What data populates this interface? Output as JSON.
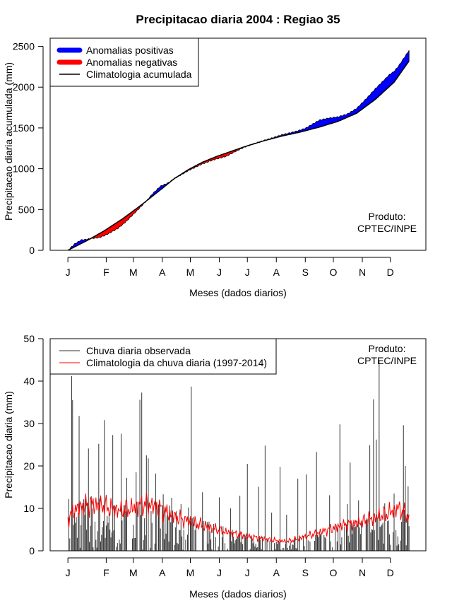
{
  "title": "Precipitacao diaria 2004 : Regiao 35",
  "credit": {
    "line1": "Produto:",
    "line2": "CPTEC/INPE"
  },
  "colors": {
    "positive": "#0000ff",
    "negative": "#ff0000",
    "observed": "#333333",
    "climatology": "#ff0000",
    "axis": "#000000"
  },
  "chart_data": [
    {
      "type": "area",
      "name": "accumulated",
      "ylabel": "Precipitacao diaria acumulada (mm)",
      "xlabel": "Meses (dados diarios)",
      "ylim": [
        0,
        2600
      ],
      "xlim": [
        -18,
        384
      ],
      "month_ticks": [
        1,
        42,
        71,
        102,
        132,
        163,
        193,
        224,
        255,
        285,
        316,
        346
      ],
      "month_labels": [
        "J",
        "F",
        "M",
        "A",
        "M",
        "J",
        "J",
        "A",
        "S",
        "O",
        "N",
        "D"
      ],
      "yticks": [
        0,
        500,
        1000,
        1500,
        2000,
        2500
      ],
      "legend": {
        "position": "top-left",
        "entries": [
          "Anomalias positivas",
          "Anomalias negativas",
          "Climatologia acumulada"
        ]
      },
      "climatology_knots": [
        [
          1,
          0
        ],
        [
          20,
          110
        ],
        [
          40,
          240
        ],
        [
          60,
          390
        ],
        [
          80,
          560
        ],
        [
          100,
          740
        ],
        [
          115,
          880
        ],
        [
          130,
          990
        ],
        [
          145,
          1080
        ],
        [
          160,
          1150
        ],
        [
          175,
          1210
        ],
        [
          190,
          1270
        ],
        [
          210,
          1340
        ],
        [
          230,
          1400
        ],
        [
          250,
          1450
        ],
        [
          270,
          1510
        ],
        [
          290,
          1580
        ],
        [
          310,
          1680
        ],
        [
          330,
          1850
        ],
        [
          350,
          2060
        ],
        [
          366,
          2320
        ]
      ],
      "anomaly_knots": [
        [
          1,
          0
        ],
        [
          8,
          35
        ],
        [
          15,
          45
        ],
        [
          25,
          0
        ],
        [
          35,
          -50
        ],
        [
          45,
          -70
        ],
        [
          55,
          -80
        ],
        [
          65,
          -60
        ],
        [
          75,
          -30
        ],
        [
          85,
          0
        ],
        [
          92,
          30
        ],
        [
          100,
          45
        ],
        [
          108,
          10
        ],
        [
          115,
          0
        ],
        [
          125,
          -10
        ],
        [
          135,
          -15
        ],
        [
          145,
          -20
        ],
        [
          155,
          -25
        ],
        [
          170,
          -40
        ],
        [
          180,
          -20
        ],
        [
          190,
          -5
        ],
        [
          200,
          0
        ],
        [
          215,
          5
        ],
        [
          230,
          15
        ],
        [
          245,
          20
        ],
        [
          255,
          30
        ],
        [
          262,
          55
        ],
        [
          270,
          85
        ],
        [
          280,
          75
        ],
        [
          290,
          55
        ],
        [
          300,
          40
        ],
        [
          310,
          60
        ],
        [
          320,
          90
        ],
        [
          330,
          130
        ],
        [
          345,
          145
        ],
        [
          355,
          120
        ],
        [
          366,
          130
        ]
      ]
    },
    {
      "type": "bar",
      "name": "daily",
      "ylabel": "Precipitacao diaria (mm)",
      "xlabel": "Meses (dados diarios)",
      "ylim": [
        0,
        50
      ],
      "xlim": [
        -18,
        384
      ],
      "month_ticks": [
        1,
        42,
        71,
        102,
        132,
        163,
        193,
        224,
        255,
        285,
        316,
        346
      ],
      "month_labels": [
        "J",
        "F",
        "M",
        "A",
        "M",
        "J",
        "J",
        "A",
        "S",
        "O",
        "N",
        "D"
      ],
      "yticks": [
        0,
        10,
        20,
        30,
        40,
        50
      ],
      "legend": {
        "position": "top-left",
        "entries": [
          "Chuva diaria observada",
          "Climatologia da chuva diaria (1997-2014)"
        ]
      },
      "observed_peaks": [
        [
          2,
          12.2
        ],
        [
          5,
          41.2
        ],
        [
          6,
          35.5
        ],
        [
          13,
          31.8
        ],
        [
          23,
          24.1
        ],
        [
          34,
          25.2
        ],
        [
          40,
          30.8
        ],
        [
          49,
          27.3
        ],
        [
          58,
          27.6
        ],
        [
          64,
          17.2
        ],
        [
          74,
          18.5
        ],
        [
          78,
          35.6
        ],
        [
          80,
          37.3
        ],
        [
          85,
          22.5
        ],
        [
          87,
          21.8
        ],
        [
          95,
          18.2
        ],
        [
          103,
          13.3
        ],
        [
          112,
          12.5
        ],
        [
          122,
          11.0
        ],
        [
          130,
          10.2
        ],
        [
          133,
          38.7
        ],
        [
          145,
          13.8
        ],
        [
          150,
          6.8
        ],
        [
          163,
          12.6
        ],
        [
          175,
          10.0
        ],
        [
          185,
          13.0
        ],
        [
          193,
          20.5
        ],
        [
          205,
          15.1
        ],
        [
          212,
          24.8
        ],
        [
          219,
          9.0
        ],
        [
          228,
          19.8
        ],
        [
          235,
          8.5
        ],
        [
          247,
          17.0
        ],
        [
          256,
          18.0
        ],
        [
          267,
          23.3
        ],
        [
          281,
          13.1
        ],
        [
          292,
          29.8
        ],
        [
          300,
          11.0
        ],
        [
          303,
          20.8
        ],
        [
          312,
          11.9
        ],
        [
          324,
          24.9
        ],
        [
          328,
          35.7
        ],
        [
          331,
          26.2
        ],
        [
          334,
          44.9
        ],
        [
          340,
          11.2
        ],
        [
          350,
          13.5
        ],
        [
          360,
          29.6
        ],
        [
          362,
          20.0
        ],
        [
          365,
          15.2
        ]
      ],
      "climatology_knots": [
        [
          1,
          7.5
        ],
        [
          10,
          10
        ],
        [
          25,
          11
        ],
        [
          40,
          10.5
        ],
        [
          55,
          9.5
        ],
        [
          70,
          10
        ],
        [
          85,
          11
        ],
        [
          100,
          10
        ],
        [
          115,
          8
        ],
        [
          130,
          7
        ],
        [
          145,
          6
        ],
        [
          160,
          5
        ],
        [
          175,
          4.2
        ],
        [
          190,
          3.5
        ],
        [
          205,
          3
        ],
        [
          220,
          2.5
        ],
        [
          235,
          2.2
        ],
        [
          250,
          3
        ],
        [
          265,
          4
        ],
        [
          280,
          5
        ],
        [
          295,
          6
        ],
        [
          310,
          6.5
        ],
        [
          325,
          7.5
        ],
        [
          340,
          8.5
        ],
        [
          355,
          10
        ],
        [
          366,
          8
        ]
      ]
    }
  ]
}
